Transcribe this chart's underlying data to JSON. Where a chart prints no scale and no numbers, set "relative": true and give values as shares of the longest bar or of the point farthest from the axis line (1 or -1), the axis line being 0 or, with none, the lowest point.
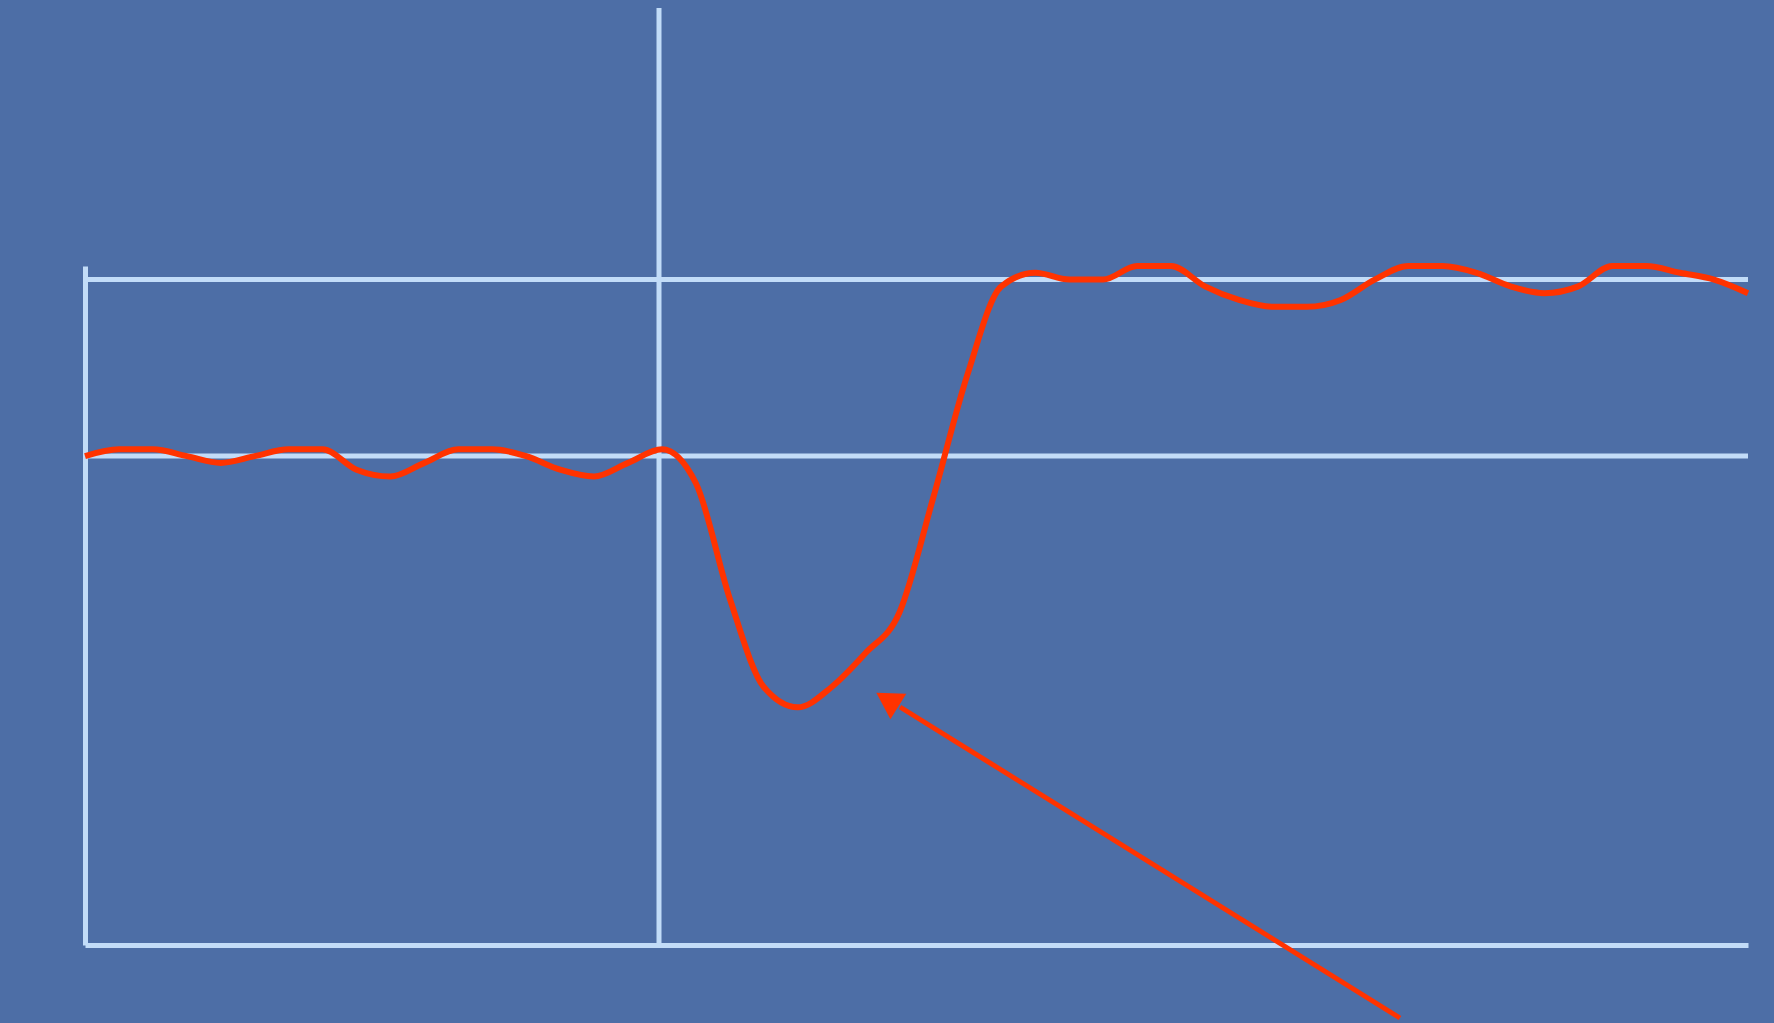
{
  "chart_data": {
    "type": "line",
    "relative": true,
    "tick_labels": false,
    "grid": false,
    "categories": [
      null,
      null,
      null,
      null,
      null,
      null,
      null,
      null,
      null,
      null,
      null,
      null,
      null,
      null,
      null,
      null,
      null,
      null,
      null,
      null,
      null,
      null,
      null,
      null,
      null,
      null,
      null,
      null,
      null,
      null,
      null,
      null,
      null,
      null,
      null,
      null,
      null,
      null,
      null,
      null,
      null,
      null,
      null,
      null,
      null,
      null,
      null,
      null,
      null,
      null
    ],
    "series": [
      {
        "color": "#ff3300",
        "values": [
          0.72,
          0.73,
          0.73,
          0.72,
          0.71,
          0.72,
          0.73,
          0.73,
          0.7,
          0.69,
          0.71,
          0.73,
          0.73,
          0.72,
          0.7,
          0.69,
          0.71,
          0.73,
          0.68,
          0.51,
          0.38,
          0.35,
          0.38,
          0.43,
          0.49,
          0.66,
          0.84,
          0.97,
          0.99,
          0.98,
          0.98,
          1.0,
          1.0,
          0.97,
          0.95,
          0.94,
          0.94,
          0.95,
          0.98,
          1.0,
          1.0,
          0.99,
          0.97,
          0.96,
          0.97,
          1.0,
          1.0,
          0.99,
          0.98,
          0.96
        ]
      }
    ],
    "ref_lines": [
      {
        "axis": "y",
        "value": 0.72,
        "color": "#c2dcf8"
      },
      {
        "axis": "y",
        "value": 0.98,
        "color": "#c2dcf8"
      }
    ]
  }
}
